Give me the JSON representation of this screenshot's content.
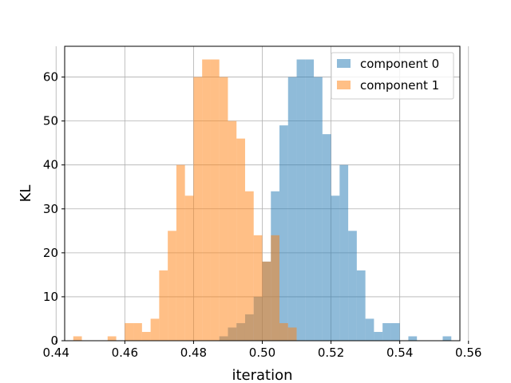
{
  "chart_data": {
    "type": "histogram",
    "title": "",
    "xlabel": "iteration",
    "ylabel": "KL",
    "xlim": [
      0.4425,
      0.5575
    ],
    "ylim": [
      0,
      67
    ],
    "xticks": [
      0.44,
      0.46,
      0.48,
      0.5,
      0.52,
      0.54,
      0.56
    ],
    "yticks": [
      0,
      10,
      20,
      30,
      40,
      50,
      60
    ],
    "grid": true,
    "legend_position": "top-right",
    "bin_width": 0.0025,
    "series": [
      {
        "name": "component 0",
        "color": "#1f77b4",
        "opacity": 0.5,
        "bin_starts": [
          0.4875,
          0.49,
          0.4925,
          0.495,
          0.4975,
          0.5,
          0.5025,
          0.505,
          0.5075,
          0.51,
          0.5125,
          0.515,
          0.5175,
          0.52,
          0.5225,
          0.525,
          0.5275,
          0.53,
          0.5325,
          0.535,
          0.5375,
          0.54,
          0.5425,
          0.5525
        ],
        "counts": [
          1,
          3,
          4,
          6,
          10,
          18,
          34,
          49,
          60,
          64,
          64,
          60,
          47,
          33,
          40,
          25,
          16,
          5,
          2,
          4,
          4,
          0,
          1,
          1
        ]
      },
      {
        "name": "component 1",
        "color": "#ff7f0e",
        "opacity": 0.5,
        "bin_starts": [
          0.445,
          0.455,
          0.46,
          0.4625,
          0.465,
          0.4675,
          0.47,
          0.4725,
          0.475,
          0.4775,
          0.48,
          0.4825,
          0.485,
          0.4875,
          0.49,
          0.4925,
          0.495,
          0.4975,
          0.5,
          0.5025,
          0.505,
          0.5075
        ],
        "counts": [
          1,
          1,
          4,
          4,
          2,
          5,
          16,
          25,
          40,
          33,
          60,
          64,
          64,
          60,
          50,
          46,
          34,
          24,
          18,
          24,
          4,
          3
        ]
      }
    ]
  }
}
